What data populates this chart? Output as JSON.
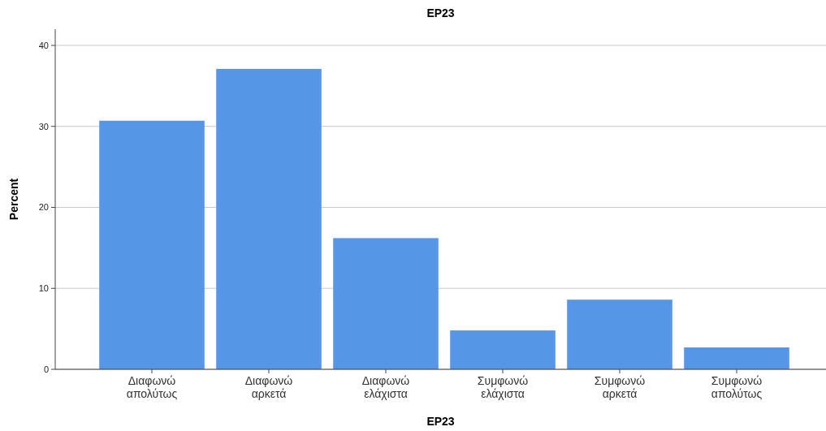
{
  "chart_data": {
    "type": "bar",
    "title": "EP23",
    "xlabel": "EP23",
    "ylabel": "Percent",
    "categories": [
      "Διαφωνώ απολύτως",
      "Διαφωνώ αρκετά",
      "Διαφωνώ ελάχιστα",
      "Συμφωνώ ελάχιστα",
      "Συμφωνώ αρκετά",
      "Συμφωνώ απολύτως"
    ],
    "values": [
      30.7,
      37.1,
      16.2,
      4.8,
      8.6,
      2.7
    ],
    "color": "#5596e6",
    "ylim": [
      0,
      42
    ],
    "yticks": [
      0,
      10,
      20,
      30,
      40
    ],
    "grid": "y"
  }
}
